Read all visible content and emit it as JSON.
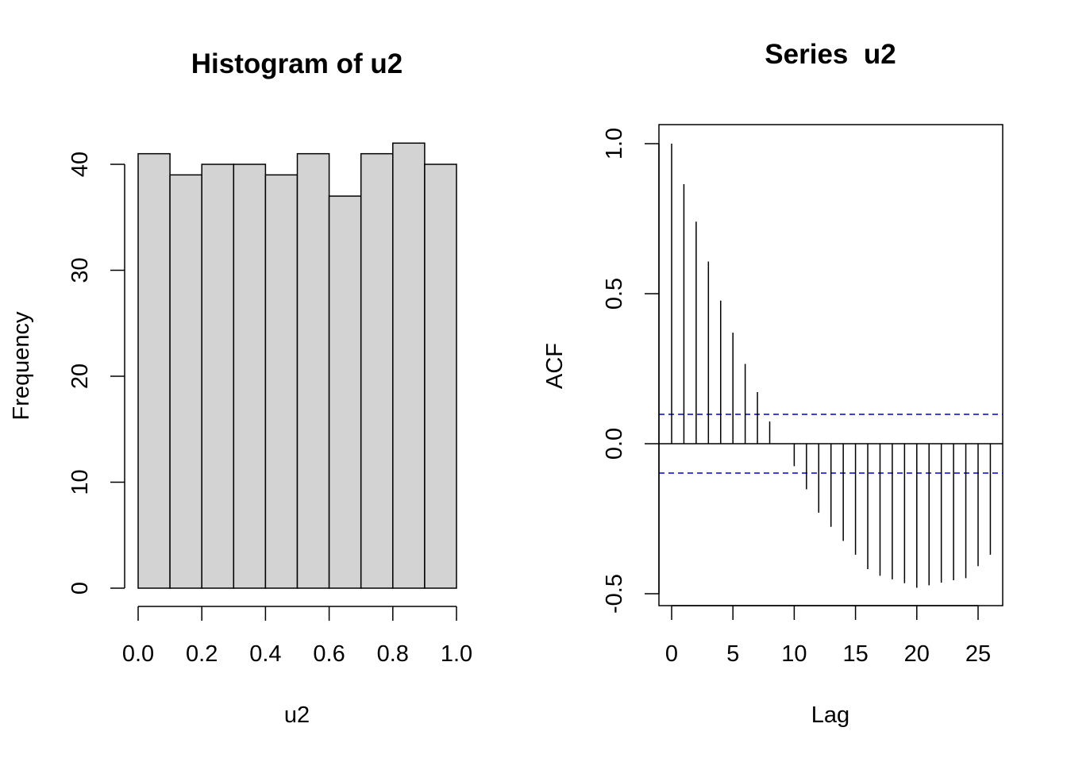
{
  "chart_data": [
    {
      "type": "bar",
      "subtype": "histogram",
      "title": "Histogram of u2",
      "xlabel": "u2",
      "ylabel": "Frequency",
      "bin_edges": [
        0.0,
        0.1,
        0.2,
        0.3,
        0.4,
        0.5,
        0.6,
        0.7,
        0.8,
        0.9,
        1.0
      ],
      "values": [
        41,
        39,
        40,
        40,
        39,
        41,
        37,
        41,
        42,
        40
      ],
      "xlim": [
        0,
        1
      ],
      "ylim": [
        0,
        42
      ],
      "x_ticks": [
        0.0,
        0.2,
        0.4,
        0.6,
        0.8,
        1.0
      ],
      "x_tick_labels": [
        "0.0",
        "0.2",
        "0.4",
        "0.6",
        "0.8",
        "1.0"
      ],
      "y_ticks": [
        0,
        10,
        20,
        30,
        40
      ],
      "y_tick_labels": [
        "0",
        "10",
        "20",
        "30",
        "40"
      ],
      "bar_fill": "#d3d3d3",
      "grid": false
    },
    {
      "type": "bar",
      "subtype": "acf",
      "title": "Series  u2",
      "xlabel": "Lag",
      "ylabel": "ACF",
      "lags": [
        0,
        1,
        2,
        3,
        4,
        5,
        6,
        7,
        8,
        9,
        10,
        11,
        12,
        13,
        14,
        15,
        16,
        17,
        18,
        19,
        20,
        21,
        22,
        23,
        24,
        25,
        26
      ],
      "values": [
        1.0,
        0.865,
        0.74,
        0.607,
        0.477,
        0.37,
        0.266,
        0.172,
        0.074,
        0.0,
        -0.075,
        -0.152,
        -0.23,
        -0.277,
        -0.324,
        -0.37,
        -0.418,
        -0.44,
        -0.452,
        -0.465,
        -0.48,
        -0.472,
        -0.463,
        -0.455,
        -0.448,
        -0.408,
        -0.37
      ],
      "confidence_limit": 0.098,
      "ci_color": "#0000cd",
      "xlim": [
        -1,
        27
      ],
      "ylim": [
        -0.54,
        1.06
      ],
      "x_ticks": [
        0,
        5,
        10,
        15,
        20,
        25
      ],
      "x_tick_labels": [
        "0",
        "5",
        "10",
        "15",
        "20",
        "25"
      ],
      "y_ticks": [
        -0.5,
        0.0,
        0.5,
        1.0
      ],
      "y_tick_labels": [
        "-0.5",
        "0.0",
        "0.5",
        "1.0"
      ],
      "grid": false
    }
  ]
}
